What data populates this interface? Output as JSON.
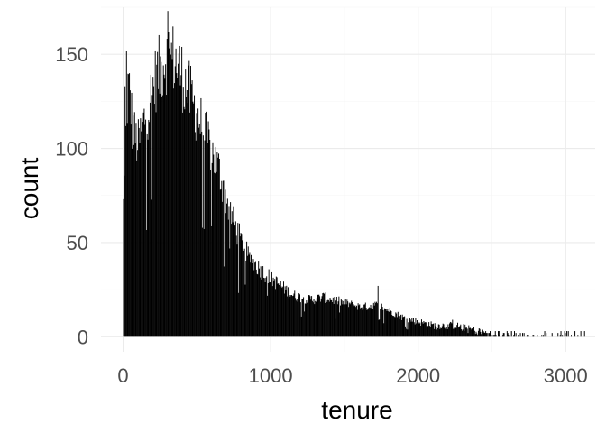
{
  "chart_data": {
    "type": "bar",
    "subtype": "histogram",
    "title": "",
    "xlabel": "tenure",
    "ylabel": "count",
    "xlim": [
      -150,
      3200
    ],
    "ylim": [
      -8,
      175
    ],
    "x_ticks": [
      0,
      1000,
      2000,
      3000
    ],
    "y_ticks": [
      0,
      50,
      100,
      150
    ],
    "grid": true,
    "legend": "none",
    "bar_color": "#000000",
    "bin_width": 5,
    "density_profile": {
      "x": [
        0,
        10,
        20,
        30,
        45,
        60,
        80,
        100,
        120,
        150,
        180,
        200,
        220,
        250,
        280,
        300,
        330,
        360,
        400,
        450,
        500,
        550,
        600,
        650,
        700,
        750,
        800,
        850,
        900,
        950,
        1000,
        1050,
        1100,
        1150,
        1200,
        1250,
        1300,
        1350,
        1400,
        1450,
        1500,
        1550,
        1600,
        1650,
        1700,
        1750,
        1800,
        1850,
        1900,
        1950,
        2000,
        2050,
        2100,
        2150,
        2200,
        2250,
        2300,
        2350,
        2400,
        2450,
        2500,
        2600,
        2700,
        2800,
        2900,
        3000,
        3100,
        3130
      ],
      "y": [
        70,
        95,
        118,
        132,
        128,
        112,
        105,
        102,
        108,
        118,
        125,
        132,
        138,
        142,
        148,
        150,
        148,
        145,
        138,
        128,
        118,
        108,
        98,
        88,
        72,
        60,
        50,
        42,
        38,
        34,
        31,
        28,
        25,
        22,
        21,
        20,
        20,
        21,
        20,
        19,
        18,
        17,
        16,
        16,
        17,
        16,
        14,
        12,
        10,
        9,
        8,
        7,
        6,
        6,
        6,
        6,
        5,
        4,
        3,
        2,
        1.5,
        1,
        0.8,
        0.6,
        0.5,
        0.4,
        0.4,
        0.3
      ]
    },
    "spikes": [
      {
        "x": 8,
        "y": 133
      },
      {
        "x": 22,
        "y": 152
      },
      {
        "x": 300,
        "y": 173
      },
      {
        "x": 1725,
        "y": 27
      },
      {
        "x": 2230,
        "y": 9
      },
      {
        "x": 3125,
        "y": 3
      }
    ]
  }
}
